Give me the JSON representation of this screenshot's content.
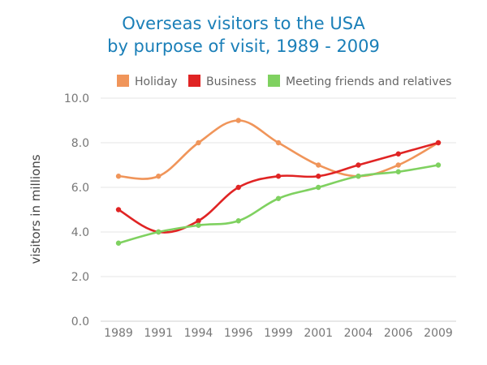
{
  "chart_data": {
    "type": "line",
    "title": [
      "Overseas visitors to the USA",
      "by purpose of visit, 1989 - 2009"
    ],
    "xlabel": "",
    "ylabel": "visitors in millions",
    "categories": [
      "1989",
      "1991",
      "1994",
      "1996",
      "1999",
      "2001",
      "2004",
      "2006",
      "2009"
    ],
    "ylim": [
      0,
      10
    ],
    "yticks": [
      "0.0",
      "2.0",
      "4.0",
      "6.0",
      "8.0",
      "10.0"
    ],
    "grid": true,
    "legend_position": "top",
    "series": [
      {
        "name": "Holiday",
        "color": "#f0955a",
        "values": [
          6.5,
          6.5,
          8.0,
          9.0,
          8.0,
          7.0,
          6.5,
          7.0,
          8.0
        ]
      },
      {
        "name": "Business",
        "color": "#e02424",
        "values": [
          5.0,
          4.0,
          4.5,
          6.0,
          6.5,
          6.5,
          7.0,
          7.5,
          8.0
        ]
      },
      {
        "name": "Meeting friends and relatives",
        "color": "#7fd160",
        "values": [
          3.5,
          4.0,
          4.3,
          4.5,
          5.5,
          6.0,
          6.5,
          6.7,
          7.0
        ]
      }
    ]
  }
}
